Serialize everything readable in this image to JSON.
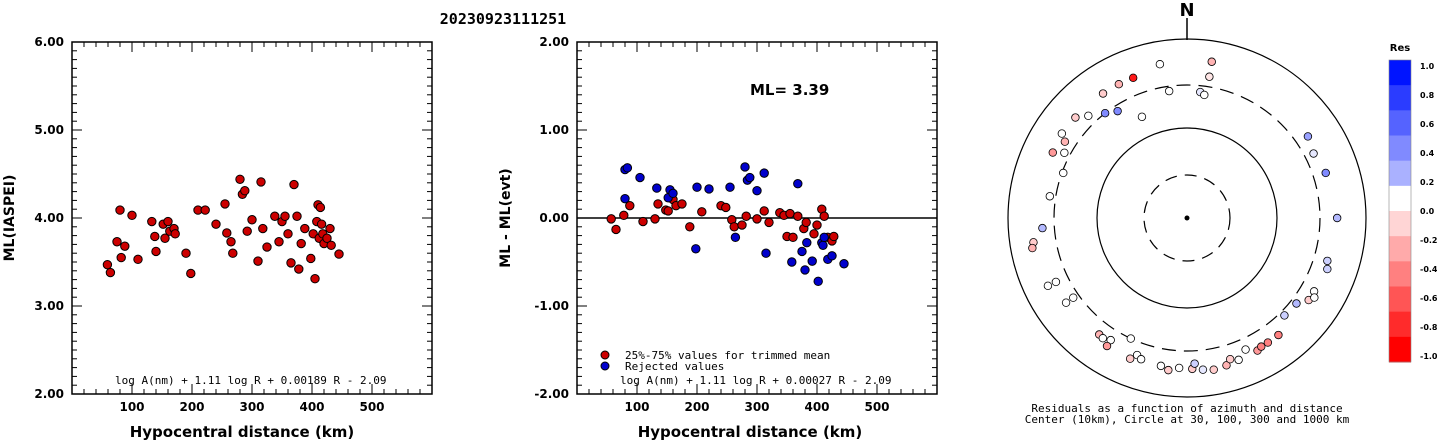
{
  "title": "20230923111251",
  "chart_data": [
    {
      "type": "scatter",
      "xlabel": "Hypocentral distance (km)",
      "ylabel": "ML(IASPEI)",
      "xlim": [
        0,
        600
      ],
      "ylim": [
        2.0,
        6.0
      ],
      "x_ticks": [
        "100",
        "200",
        "300",
        "400",
        "500"
      ],
      "y_ticks": [
        "2.00",
        "3.00",
        "4.00",
        "5.00",
        "6.00"
      ],
      "formula": "log A(nm) + 1.11 log R + 0.00189 R - 2.09",
      "grid": false,
      "series": [
        {
          "color": "#cc0000",
          "points": [
            [
              59,
              3.47
            ],
            [
              64,
              3.38
            ],
            [
              75,
              3.73
            ],
            [
              80,
              4.09
            ],
            [
              82,
              3.55
            ],
            [
              88,
              3.68
            ],
            [
              100,
              4.03
            ],
            [
              110,
              3.53
            ],
            [
              133,
              3.96
            ],
            [
              138,
              3.79
            ],
            [
              140,
              3.62
            ],
            [
              152,
              3.93
            ],
            [
              155,
              3.77
            ],
            [
              160,
              3.96
            ],
            [
              163,
              3.85
            ],
            [
              170,
              3.88
            ],
            [
              172,
              3.82
            ],
            [
              190,
              3.6
            ],
            [
              198,
              3.37
            ],
            [
              210,
              4.09
            ],
            [
              222,
              4.09
            ],
            [
              240,
              3.93
            ],
            [
              255,
              4.16
            ],
            [
              258,
              3.83
            ],
            [
              265,
              3.73
            ],
            [
              268,
              3.6
            ],
            [
              280,
              4.44
            ],
            [
              284,
              4.27
            ],
            [
              288,
              4.31
            ],
            [
              292,
              3.85
            ],
            [
              300,
              3.98
            ],
            [
              310,
              3.51
            ],
            [
              315,
              4.41
            ],
            [
              318,
              3.88
            ],
            [
              325,
              3.67
            ],
            [
              338,
              4.02
            ],
            [
              345,
              3.73
            ],
            [
              350,
              3.96
            ],
            [
              355,
              4.02
            ],
            [
              360,
              3.82
            ],
            [
              365,
              3.49
            ],
            [
              370,
              4.38
            ],
            [
              375,
              4.02
            ],
            [
              378,
              3.42
            ],
            [
              382,
              3.71
            ],
            [
              388,
              3.88
            ],
            [
              398,
              3.54
            ],
            [
              402,
              3.82
            ],
            [
              405,
              3.31
            ],
            [
              408,
              3.96
            ],
            [
              410,
              4.15
            ],
            [
              412,
              3.77
            ],
            [
              414,
              4.12
            ],
            [
              416,
              3.93
            ],
            [
              418,
              3.82
            ],
            [
              420,
              3.71
            ],
            [
              425,
              3.77
            ],
            [
              430,
              3.88
            ],
            [
              432,
              3.69
            ],
            [
              445,
              3.59
            ]
          ]
        }
      ]
    },
    {
      "type": "scatter",
      "xlabel": "Hypocentral distance (km)",
      "ylabel": "ML - ML(evt)",
      "xlim": [
        0,
        600
      ],
      "ylim": [
        -2.0,
        2.0
      ],
      "x_ticks": [
        "100",
        "200",
        "300",
        "400",
        "500"
      ],
      "y_ticks": [
        "-2.00",
        "-1.00",
        "0.00",
        "1.00",
        "2.00"
      ],
      "annotation": "ML= 3.39",
      "formula": "log A(nm) + 1.11 log R + 0.00027 R - 2.09",
      "legend": {
        "position": "bottom-left",
        "entries": [
          {
            "label": "25%-75% values for trimmed mean",
            "color": "#cc0000"
          },
          {
            "label": "Rejected values",
            "color": "#0000cc"
          }
        ]
      },
      "grid": false,
      "series": [
        {
          "name": "25%-75% values for trimmed mean",
          "color": "#cc0000",
          "points": [
            [
              57,
              -0.01
            ],
            [
              65,
              -0.13
            ],
            [
              78,
              0.03
            ],
            [
              88,
              0.14
            ],
            [
              110,
              -0.04
            ],
            [
              130,
              -0.01
            ],
            [
              135,
              0.16
            ],
            [
              148,
              0.09
            ],
            [
              152,
              0.08
            ],
            [
              160,
              0.21
            ],
            [
              165,
              0.14
            ],
            [
              175,
              0.16
            ],
            [
              188,
              -0.1
            ],
            [
              208,
              0.07
            ],
            [
              240,
              0.14
            ],
            [
              248,
              0.12
            ],
            [
              258,
              -0.02
            ],
            [
              262,
              -0.1
            ],
            [
              275,
              -0.08
            ],
            [
              282,
              0.02
            ],
            [
              300,
              -0.01
            ],
            [
              312,
              0.08
            ],
            [
              320,
              -0.05
            ],
            [
              338,
              0.06
            ],
            [
              345,
              0.03
            ],
            [
              350,
              -0.21
            ],
            [
              355,
              0.05
            ],
            [
              360,
              -0.22
            ],
            [
              368,
              0.02
            ],
            [
              378,
              -0.12
            ],
            [
              382,
              -0.05
            ],
            [
              395,
              -0.18
            ],
            [
              400,
              -0.08
            ],
            [
              408,
              0.1
            ],
            [
              412,
              0.02
            ],
            [
              418,
              -0.22
            ],
            [
              425,
              -0.26
            ],
            [
              428,
              -0.21
            ]
          ]
        },
        {
          "name": "Rejected values",
          "color": "#0000cc",
          "points": [
            [
              80,
              0.55
            ],
            [
              84,
              0.57
            ],
            [
              80,
              0.22
            ],
            [
              105,
              0.46
            ],
            [
              133,
              0.34
            ],
            [
              152,
              0.23
            ],
            [
              155,
              0.32
            ],
            [
              160,
              0.28
            ],
            [
              198,
              -0.35
            ],
            [
              200,
              0.35
            ],
            [
              220,
              0.33
            ],
            [
              255,
              0.35
            ],
            [
              264,
              -0.22
            ],
            [
              280,
              0.58
            ],
            [
              284,
              0.43
            ],
            [
              288,
              0.46
            ],
            [
              300,
              0.31
            ],
            [
              312,
              0.51
            ],
            [
              315,
              -0.4
            ],
            [
              358,
              -0.5
            ],
            [
              368,
              0.39
            ],
            [
              375,
              -0.38
            ],
            [
              380,
              -0.59
            ],
            [
              383,
              -0.28
            ],
            [
              392,
              -0.49
            ],
            [
              402,
              -0.72
            ],
            [
              408,
              -0.28
            ],
            [
              410,
              -0.31
            ],
            [
              412,
              -0.22
            ],
            [
              418,
              -0.47
            ],
            [
              425,
              -0.43
            ],
            [
              445,
              -0.52
            ]
          ]
        }
      ]
    },
    {
      "type": "scatter",
      "polar": true,
      "north_label": "N",
      "caption": [
        "Residuals as a function of azimuth and distance",
        "Center (10km), Circle at 30, 100, 300 and 1000 km"
      ],
      "ring_distances_km": [
        30,
        100,
        300,
        1000
      ],
      "colorbar": {
        "title": "Res",
        "tick_labels": [
          "1.0",
          "0.8",
          "0.6",
          "0.4",
          "0.2",
          "0.0",
          "-0.2",
          "-0.4",
          "-0.6",
          "-0.8",
          "-1.0"
        ],
        "colors": [
          "#0014ff",
          "#2b3cff",
          "#5563ff",
          "#808aff",
          "#aab1ff",
          "#ffffff",
          "#ffd5d5",
          "#ffaaaa",
          "#ff8080",
          "#ff5555",
          "#ff2b2b",
          "#ff0000"
        ]
      },
      "points": [
        {
          "az_deg": -8,
          "dist_km": 265,
          "res": 0.0
        },
        {
          "az_deg": 6,
          "dist_km": 255,
          "res": 0.1
        },
        {
          "az_deg": 9,
          "dist_km": 390,
          "res": -0.1
        },
        {
          "az_deg": -21,
          "dist_km": 470,
          "res": -0.9
        },
        {
          "az_deg": -27,
          "dist_km": 470,
          "res": -0.3
        },
        {
          "az_deg": -34,
          "dist_km": 470,
          "res": -0.2
        },
        {
          "az_deg": -33,
          "dist_km": 260,
          "res": 0.5
        },
        {
          "az_deg": -10,
          "dist_km": 550,
          "res": 0.0
        },
        {
          "az_deg": 9,
          "dist_km": 580,
          "res": -0.3
        },
        {
          "az_deg": -38,
          "dist_km": 300,
          "res": 0.5
        },
        {
          "az_deg": -44,
          "dist_km": 380,
          "res": 0.0
        },
        {
          "az_deg": -48,
          "dist_km": 470,
          "res": -0.2
        },
        {
          "az_deg": -58,
          "dist_km": 400,
          "res": -0.3
        },
        {
          "az_deg": -62,
          "dist_km": 350,
          "res": 0.0
        },
        {
          "az_deg": -56,
          "dist_km": 480,
          "res": 0.0
        },
        {
          "az_deg": -64,
          "dist_km": 460,
          "res": -0.4
        },
        {
          "az_deg": 8,
          "dist_km": 240,
          "res": 0.0
        },
        {
          "az_deg": 56,
          "dist_km": 420,
          "res": 0.4
        },
        {
          "az_deg": 72,
          "dist_km": 420,
          "res": 0.5
        },
        {
          "az_deg": 63,
          "dist_km": 380,
          "res": 0.1
        },
        {
          "az_deg": -81,
          "dist_km": 350,
          "res": 0.0
        },
        {
          "az_deg": -99,
          "dist_km": 540,
          "res": -0.2
        },
        {
          "az_deg": -101,
          "dist_km": 570,
          "res": -0.3
        },
        {
          "az_deg": -94,
          "dist_km": 410,
          "res": 0.3
        },
        {
          "az_deg": -116,
          "dist_km": 420,
          "res": 0.0
        },
        {
          "az_deg": -125,
          "dist_km": 440,
          "res": 0.0
        },
        {
          "az_deg": -116,
          "dist_km": 530,
          "res": 0.0
        },
        {
          "az_deg": -125,
          "dist_km": 350,
          "res": 0.0
        },
        {
          "az_deg": -155,
          "dist_km": 300,
          "res": 0.0
        },
        {
          "az_deg": -160,
          "dist_km": 420,
          "res": 0.0
        },
        {
          "az_deg": -148,
          "dist_km": 400,
          "res": 0.0
        },
        {
          "az_deg": -143,
          "dist_km": 420,
          "res": -0.3
        },
        {
          "az_deg": -145,
          "dist_km": 430,
          "res": 0.0
        },
        {
          "az_deg": -148,
          "dist_km": 480,
          "res": -0.4
        },
        {
          "az_deg": -158,
          "dist_km": 490,
          "res": -0.2
        },
        {
          "az_deg": -162,
          "dist_km": 450,
          "res": 0.0
        },
        {
          "az_deg": -170,
          "dist_km": 470,
          "res": 0.0
        },
        {
          "az_deg": -173,
          "dist_km": 510,
          "res": -0.2
        },
        {
          "az_deg": -177,
          "dist_km": 470,
          "res": 0.0
        },
        {
          "az_deg": 178,
          "dist_km": 480,
          "res": -0.2
        },
        {
          "az_deg": 174,
          "dist_km": 500,
          "res": 0.1
        },
        {
          "az_deg": 177,
          "dist_km": 420,
          "res": 0.2
        },
        {
          "az_deg": 170,
          "dist_km": 520,
          "res": -0.2
        },
        {
          "az_deg": 165,
          "dist_km": 500,
          "res": -0.3
        },
        {
          "az_deg": 163,
          "dist_km": 440,
          "res": -0.2
        },
        {
          "az_deg": 160,
          "dist_km": 480,
          "res": 0.0
        },
        {
          "az_deg": 156,
          "dist_km": 400,
          "res": 0.0
        },
        {
          "az_deg": 152,
          "dist_km": 470,
          "res": -0.4
        },
        {
          "az_deg": 150,
          "dist_km": 450,
          "res": -0.5
        },
        {
          "az_deg": 147,
          "dist_km": 450,
          "res": -0.5
        },
        {
          "az_deg": 142,
          "dist_km": 450,
          "res": -0.5
        },
        {
          "az_deg": 135,
          "dist_km": 340,
          "res": 0.2
        },
        {
          "az_deg": 128,
          "dist_km": 350,
          "res": 0.3
        },
        {
          "az_deg": 124,
          "dist_km": 430,
          "res": -0.2
        },
        {
          "az_deg": 120,
          "dist_km": 430,
          "res": 0.0
        },
        {
          "az_deg": 122,
          "dist_km": 470,
          "res": 0.0
        },
        {
          "az_deg": 110,
          "dist_km": 460,
          "res": 0.2
        },
        {
          "az_deg": 107,
          "dist_km": 430,
          "res": 0.2
        },
        {
          "az_deg": 90,
          "dist_km": 470,
          "res": 0.3
        },
        {
          "az_deg": -24,
          "dist_km": 170,
          "res": 0.0
        },
        {
          "az_deg": -70,
          "dist_km": 290,
          "res": 0.0
        }
      ]
    }
  ]
}
